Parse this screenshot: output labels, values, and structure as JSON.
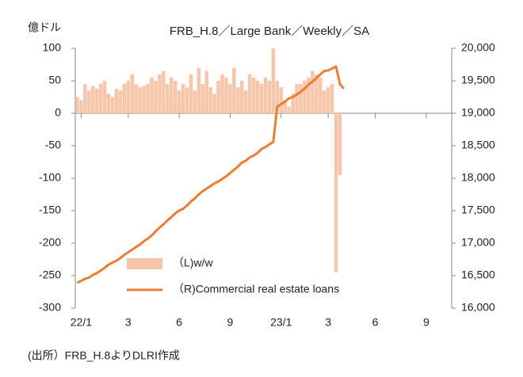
{
  "chart_data": {
    "type": "bar",
    "title": "FRB_H.8／Large Bank／Weekly／SA",
    "y_label": "億ドル",
    "source": "(出所）FRB_H.8よりDLRI作成",
    "categories": [
      null,
      "22/1",
      null,
      null,
      null,
      null,
      null,
      null,
      null,
      null,
      null,
      null,
      null,
      "3",
      null,
      null,
      null,
      null,
      null,
      null,
      null,
      null,
      null,
      null,
      null,
      null,
      "6",
      null,
      null,
      null,
      null,
      null,
      null,
      null,
      null,
      null,
      null,
      null,
      null,
      "9",
      null,
      null,
      null,
      null,
      null,
      null,
      null,
      null,
      null,
      null,
      null,
      null,
      "23/1",
      null,
      null,
      null,
      null,
      null,
      null,
      null,
      null,
      null,
      null,
      null,
      "3",
      null,
      null,
      null,
      null,
      null,
      null,
      null,
      null,
      null,
      null,
      null,
      "6",
      null,
      null,
      null,
      null,
      null,
      null,
      null,
      null,
      null,
      null,
      null,
      null,
      "9",
      null,
      null,
      null,
      null,
      null,
      null
    ],
    "series": [
      {
        "name": "（L)w/w",
        "type": "bar",
        "color": "#f8c5a9",
        "values": [
          25,
          20,
          45,
          35,
          42,
          38,
          45,
          50,
          30,
          25,
          38,
          35,
          45,
          50,
          60,
          45,
          40,
          42,
          45,
          55,
          50,
          60,
          65,
          45,
          55,
          50,
          35,
          45,
          40,
          60,
          35,
          70,
          45,
          65,
          40,
          30,
          50,
          60,
          55,
          45,
          70,
          40,
          50,
          35,
          60,
          55,
          50,
          45,
          55,
          50,
          100,
          50,
          40,
          20,
          10,
          30,
          45,
          45,
          50,
          55,
          65,
          60,
          55,
          35,
          40,
          45,
          -245,
          -95,
          null,
          null,
          null,
          null,
          null,
          null,
          null,
          null,
          null,
          null,
          null,
          null,
          null,
          null,
          null,
          null,
          null,
          null,
          null,
          null,
          null,
          null,
          null,
          null,
          null,
          null,
          null,
          null
        ]
      },
      {
        "name": "（R)Commercial real estate loans",
        "type": "line",
        "axis": "y2",
        "color": "#ed7d31",
        "values": [
          16390,
          16420,
          16450,
          16470,
          16510,
          16540,
          16580,
          16620,
          16670,
          16700,
          16730,
          16770,
          16820,
          16860,
          16900,
          16940,
          16980,
          17030,
          17070,
          17120,
          17180,
          17240,
          17290,
          17350,
          17400,
          17460,
          17500,
          17530,
          17580,
          17640,
          17690,
          17750,
          17800,
          17840,
          17880,
          17920,
          17950,
          17990,
          18030,
          18080,
          18130,
          18180,
          18240,
          18270,
          18320,
          18350,
          18390,
          18450,
          18480,
          18520,
          18560,
          19100,
          19140,
          19180,
          19230,
          19250,
          19290,
          19330,
          19380,
          19440,
          19490,
          19540,
          19600,
          19650,
          19660,
          19690,
          19720,
          19450,
          19380,
          null,
          null,
          null,
          null,
          null,
          null,
          null,
          null,
          null,
          null,
          null,
          null,
          null,
          null,
          null,
          null,
          null,
          null,
          null,
          null,
          null,
          null,
          null,
          null,
          null,
          null,
          null
        ]
      }
    ],
    "ylim": [
      -300,
      100
    ],
    "yticks": [
      -300,
      -250,
      -200,
      -150,
      -100,
      -50,
      0,
      50,
      100
    ],
    "y2lim": [
      16000,
      20000
    ],
    "y2ticks": [
      {
        "value": 16000,
        "label": "16,000"
      },
      {
        "value": 16500,
        "label": "16,500"
      },
      {
        "value": 17000,
        "label": "17,000"
      },
      {
        "value": 17500,
        "label": "17,500"
      },
      {
        "value": 18000,
        "label": "18,000"
      },
      {
        "value": 18500,
        "label": "18,500"
      },
      {
        "value": 19000,
        "label": "19,000"
      },
      {
        "value": 19500,
        "label": "19,500"
      },
      {
        "value": 20000,
        "label": "20,000"
      }
    ],
    "negative_tick_color": "#e00000",
    "legend": "lower center",
    "grid": false
  }
}
